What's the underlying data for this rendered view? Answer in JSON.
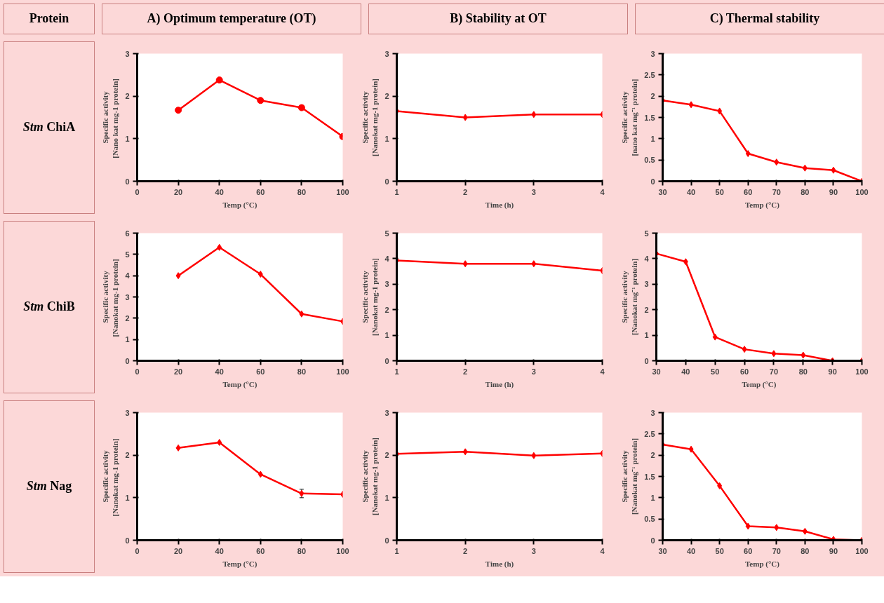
{
  "chart_data": [
    {
      "type": "line",
      "title": "A) Optimum temperature (OT)",
      "annotations": [
        "Protein",
        "Stm ChiA"
      ],
      "xlabel": "Temp (°C)",
      "ylabel": "Specific activity\n[Nano kat mg-1  protein]",
      "x": [
        20,
        40,
        60,
        80,
        100
      ],
      "series": [
        {
          "color": "#ff0000",
          "values": [
            1.67,
            2.38,
            1.9,
            1.73,
            1.05
          ]
        }
      ],
      "xlim": [
        0,
        100
      ],
      "xticks": [
        0,
        20,
        40,
        60,
        80,
        100
      ],
      "ylim": [
        0,
        3
      ],
      "yticks": [
        0,
        1,
        2,
        3
      ],
      "marker": "circle"
    },
    {
      "type": "line",
      "title": "B) Stability at OT",
      "xlabel": "Time (h)",
      "ylabel": "Specific activity\n[Nanokat mg-1 protein]",
      "x": [
        1,
        2,
        3,
        4
      ],
      "series": [
        {
          "color": "#ff0000",
          "values": [
            1.65,
            1.5,
            1.57,
            1.57
          ]
        }
      ],
      "xlim": [
        1,
        4
      ],
      "xticks": [
        1,
        2,
        3,
        4
      ],
      "ylim": [
        0,
        3
      ],
      "yticks": [
        0,
        1,
        2,
        3
      ],
      "marker": "diamond"
    },
    {
      "type": "line",
      "title": "C) Thermal stability",
      "xlabel": "Temp (°C)",
      "ylabel": "Specific activity\n[nano kat mg⁻¹ protein]",
      "x": [
        30,
        40,
        50,
        60,
        70,
        80,
        90,
        100
      ],
      "series": [
        {
          "color": "#ff0000",
          "values": [
            1.9,
            1.8,
            1.65,
            0.65,
            0.45,
            0.31,
            0.26,
            0.0
          ]
        }
      ],
      "xlim": [
        30,
        100
      ],
      "xticks": [
        30,
        40,
        50,
        60,
        70,
        80,
        90,
        100
      ],
      "ylim": [
        0,
        3
      ],
      "yticks": [
        0,
        0.5,
        1,
        1.5,
        2,
        2.5,
        3
      ],
      "marker": "diamond"
    },
    {
      "type": "line",
      "annotations": [
        "Stm ChiB"
      ],
      "xlabel": "Temp (°C)",
      "ylabel": "Specific activity\n[Nanokat mg-1  protein]",
      "x": [
        20,
        40,
        60,
        80,
        100
      ],
      "series": [
        {
          "color": "#ff0000",
          "values": [
            4.0,
            5.33,
            4.07,
            2.2,
            1.85
          ]
        }
      ],
      "xlim": [
        0,
        100
      ],
      "xticks": [
        0,
        20,
        40,
        60,
        80,
        100
      ],
      "ylim": [
        0,
        6
      ],
      "yticks": [
        0,
        1,
        2,
        3,
        4,
        5,
        6
      ],
      "marker": "diamond"
    },
    {
      "type": "line",
      "xlabel": "Time (h)",
      "ylabel": "Specific activity\n[Nanokat mg-1 protein]",
      "x": [
        1,
        2,
        3,
        4
      ],
      "series": [
        {
          "color": "#ff0000",
          "values": [
            3.93,
            3.8,
            3.8,
            3.53
          ]
        }
      ],
      "xlim": [
        1,
        4
      ],
      "xticks": [
        1,
        2,
        3,
        4
      ],
      "ylim": [
        0,
        5
      ],
      "yticks": [
        0,
        1,
        2,
        3,
        4,
        5
      ],
      "marker": "diamond"
    },
    {
      "type": "line",
      "xlabel": "Temp (°C)",
      "ylabel": "Specific activity\n[Nanokat mg⁻¹ protein]",
      "x": [
        30,
        40,
        50,
        60,
        70,
        80,
        90,
        100
      ],
      "series": [
        {
          "color": "#ff0000",
          "values": [
            4.2,
            3.88,
            0.93,
            0.45,
            0.28,
            0.22,
            0.0,
            0.0
          ]
        }
      ],
      "xlim": [
        30,
        100
      ],
      "xticks": [
        30,
        40,
        50,
        60,
        70,
        80,
        90,
        100
      ],
      "ylim": [
        0,
        5
      ],
      "yticks": [
        0,
        1,
        2,
        3,
        4,
        5
      ],
      "marker": "diamond"
    },
    {
      "type": "line",
      "annotations": [
        "Stm Nag"
      ],
      "xlabel": "Temp (°C)",
      "ylabel": "Specific activity\n[Nanokat mg-1  protein]",
      "x": [
        20,
        40,
        60,
        80,
        100
      ],
      "series": [
        {
          "color": "#ff0000",
          "values": [
            2.17,
            2.3,
            1.55,
            1.1,
            1.08
          ],
          "errors": [
            null,
            null,
            null,
            0.1,
            null
          ]
        }
      ],
      "xlim": [
        0,
        100
      ],
      "xticks": [
        0,
        20,
        40,
        60,
        80,
        100
      ],
      "ylim": [
        0,
        3
      ],
      "yticks": [
        0,
        1,
        2,
        3
      ],
      "marker": "diamond"
    },
    {
      "type": "line",
      "xlabel": "Time (h)",
      "ylabel": "Specific activity\n[Nanokat mg-1 protein]",
      "x": [
        1,
        2,
        3,
        4
      ],
      "series": [
        {
          "color": "#ff0000",
          "values": [
            2.03,
            2.08,
            1.99,
            2.04
          ]
        }
      ],
      "xlim": [
        1,
        4
      ],
      "xticks": [
        1,
        2,
        3,
        4
      ],
      "ylim": [
        0,
        3
      ],
      "yticks": [
        0,
        1,
        2,
        3
      ],
      "marker": "diamond"
    },
    {
      "type": "line",
      "xlabel": "Temp (°C)",
      "ylabel": "Specific activity\n[Nanokat mg⁻¹ protein]",
      "x": [
        30,
        40,
        50,
        60,
        70,
        80,
        90,
        100
      ],
      "series": [
        {
          "color": "#ff0000",
          "values": [
            2.25,
            2.14,
            1.28,
            0.33,
            0.3,
            0.21,
            0.02,
            0.0
          ]
        }
      ],
      "xlim": [
        30,
        100
      ],
      "xticks": [
        30,
        40,
        50,
        60,
        70,
        80,
        90,
        100
      ],
      "ylim": [
        0,
        3
      ],
      "yticks": [
        0,
        0.5,
        1,
        1.5,
        2,
        2.5,
        3
      ],
      "marker": "diamond"
    }
  ]
}
